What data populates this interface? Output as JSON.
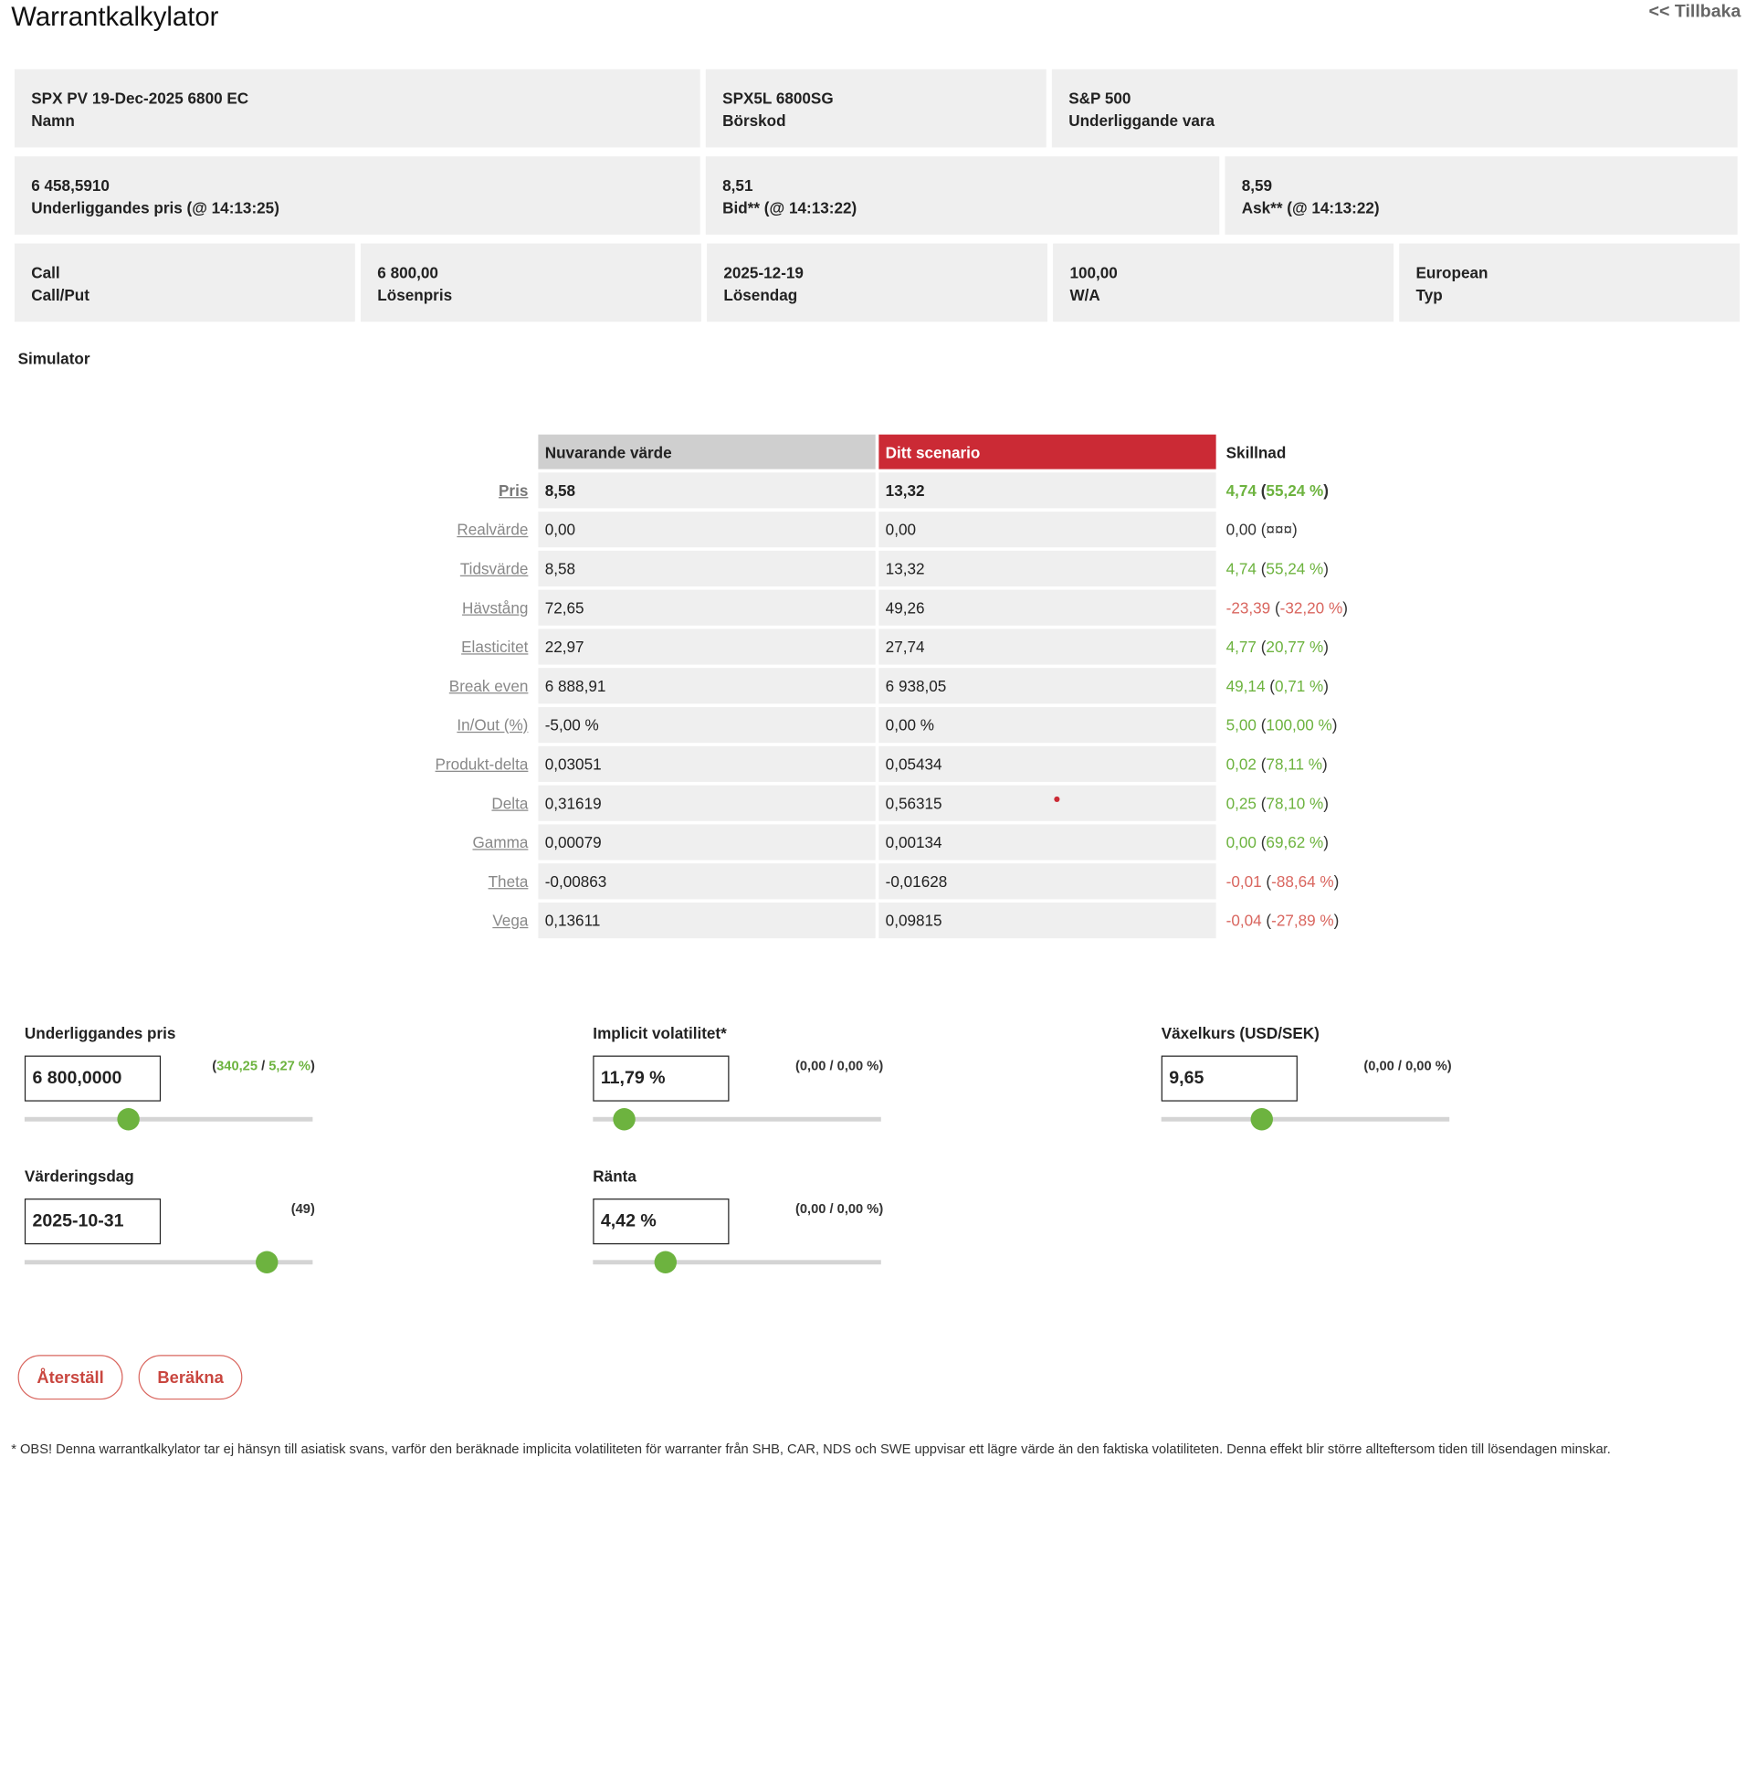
{
  "page": {
    "title": "Warrantkalkylator",
    "back": "<< Tillbaka"
  },
  "info": {
    "row1": [
      {
        "value": "SPX PV 19-Dec-2025 6800 EC",
        "label": "Namn"
      },
      {
        "value": "SPX5L 6800SG",
        "label": "Börskod"
      },
      {
        "value": "S&P 500",
        "label": "Underliggande vara"
      }
    ],
    "row2": [
      {
        "value": "6 458,5910",
        "label": "Underliggandes pris (@ ",
        "time": "14:13:25",
        "close": ")"
      },
      {
        "value": "8,51",
        "label": "Bid** (@ ",
        "time": "14:13:22",
        "close": ")"
      },
      {
        "value": "8,59",
        "label": "Ask** (@ ",
        "time": "14:13:22",
        "close": ")"
      }
    ],
    "row3": [
      {
        "value": "Call",
        "label": "Call/Put"
      },
      {
        "value": "6 800,00",
        "label": "Lösenpris"
      },
      {
        "value": "2025-12-19",
        "label": "Lösendag"
      },
      {
        "value": "100,00",
        "label": "W/A"
      },
      {
        "value": "European",
        "label": "Typ"
      }
    ]
  },
  "simulator": {
    "title": "Simulator",
    "headers": {
      "current": "Nuvarande värde",
      "scenario": "Ditt scenario",
      "diff": "Skillnad"
    },
    "rows": [
      {
        "label": "Pris",
        "current": "8,58",
        "scenario": "13,32",
        "diff": "4,74",
        "pct": "55,24 %",
        "tone": "pos",
        "bold": true
      },
      {
        "label": "Realvärde",
        "current": "0,00",
        "scenario": "0,00",
        "diff": "0,00",
        "pct": "¤¤¤",
        "tone": "neu",
        "bold": false
      },
      {
        "label": "Tidsvärde",
        "current": "8,58",
        "scenario": "13,32",
        "diff": "4,74",
        "pct": "55,24 %",
        "tone": "pos",
        "bold": false
      },
      {
        "label": "Hävstång",
        "current": "72,65",
        "scenario": "49,26",
        "diff": "-23,39",
        "pct": "-32,20 %",
        "tone": "neg",
        "bold": false
      },
      {
        "label": "Elasticitet",
        "current": "22,97",
        "scenario": "27,74",
        "diff": "4,77",
        "pct": "20,77 %",
        "tone": "pos",
        "bold": false
      },
      {
        "label": "Break even",
        "current": "6 888,91",
        "scenario": "6 938,05",
        "diff": "49,14",
        "pct": "0,71 %",
        "tone": "pos",
        "bold": false
      },
      {
        "label": "In/Out (%)",
        "current": "-5,00 %",
        "scenario": "0,00 %",
        "diff": "5,00",
        "pct": "100,00 %",
        "tone": "pos",
        "bold": false
      },
      {
        "label": "Produkt-delta",
        "current": "0,03051",
        "scenario": "0,05434",
        "diff": "0,02",
        "pct": "78,11 %",
        "tone": "pos",
        "bold": false
      },
      {
        "label": "Delta",
        "current": "0,31619",
        "scenario": "0,56315",
        "diff": "0,25",
        "pct": "78,10 %",
        "tone": "pos",
        "bold": false
      },
      {
        "label": "Gamma",
        "current": "0,00079",
        "scenario": "0,00134",
        "diff": "0,00",
        "pct": "69,62 %",
        "tone": "pos",
        "bold": false
      },
      {
        "label": "Theta",
        "current": "-0,00863",
        "scenario": "-0,01628",
        "diff": "-0,01",
        "pct": "-88,64 %",
        "tone": "neg",
        "bold": false
      },
      {
        "label": "Vega",
        "current": "0,13611",
        "scenario": "0,09815",
        "diff": "-0,04",
        "pct": "-27,89 %",
        "tone": "neg",
        "bold": false
      }
    ]
  },
  "controls": {
    "underlying": {
      "title": "Underliggandes pris",
      "value": "6 800,0000",
      "delta_abs": "340,25",
      "delta_pct": "5,27 %",
      "delta_color": "#6db33f",
      "slider_fraction": 0.36
    },
    "volatility": {
      "title": "Implicit volatilitet*",
      "value": "11,79 %",
      "delta_abs": "0,00",
      "delta_pct": "0,00 %",
      "delta_color": "#333333",
      "slider_fraction": 0.11
    },
    "fx": {
      "title": "Växelkurs (USD/SEK)",
      "value": "9,65",
      "delta_abs": "0,00",
      "delta_pct": "0,00 %",
      "delta_color": "#333333",
      "slider_fraction": 0.35
    },
    "valuation_date": {
      "title": "Värderingsdag",
      "value": "2025-10-31",
      "delta_abs": "49",
      "slider_fraction": 0.84
    },
    "rate": {
      "title": "Ränta",
      "value": "4,42 %",
      "delta_abs": "0,00",
      "delta_pct": "0,00 %",
      "delta_color": "#333333",
      "slider_fraction": 0.25
    }
  },
  "buttons": {
    "reset": "Återställ",
    "calculate": "Beräkna"
  },
  "footnote": "* OBS! Denna warrantkalkylator tar ej hänsyn till asiatisk svans, varför den beräknade implicita volatiliteten för warranter från SHB, CAR, NDS och SWE uppvisar ett lägre värde än den faktiska volatiliteten. Denna effekt blir större allteftersom tiden till lösendagen minskar.",
  "colors": {
    "accent_red": "#cb2a35",
    "positive": "#6db33f",
    "negative": "#d9665f",
    "cell_bg": "#efefef"
  }
}
